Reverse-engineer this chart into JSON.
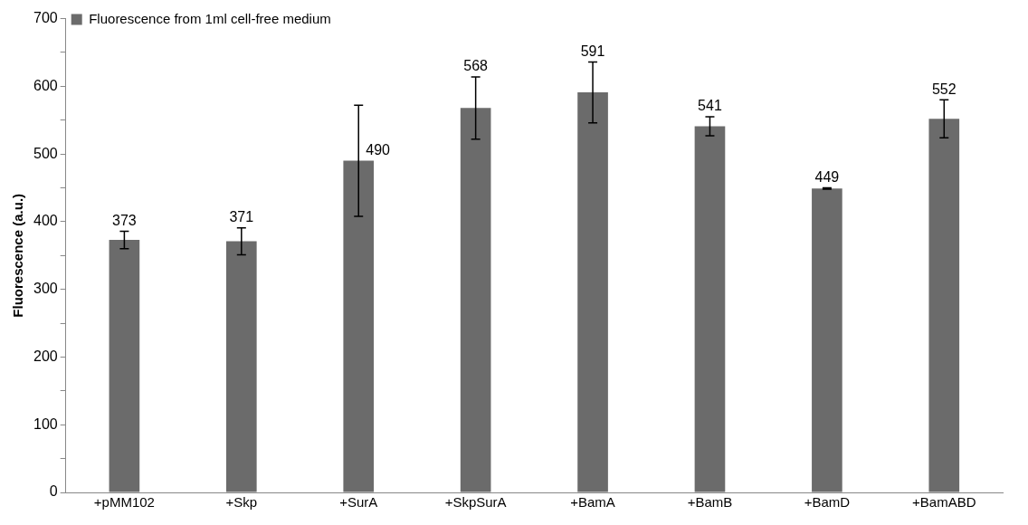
{
  "chart_data": {
    "type": "bar",
    "ylabel": "Fluorescence (a.u.)",
    "categories": [
      "+pMM102",
      "+Skp",
      "+SurA",
      "+SkpSurA",
      "+BamA",
      "+BamB",
      "+BamD",
      "+BamABD"
    ],
    "series": [
      {
        "name": "Fluorescence from 1ml cell-free medium",
        "color": "#6b6b6b",
        "values": [
          373,
          371,
          490,
          568,
          591,
          541,
          449,
          552
        ],
        "errors": [
          13,
          20,
          82,
          46,
          45,
          14,
          1,
          28
        ]
      }
    ],
    "ylim": [
      0,
      700
    ],
    "yticks": [
      0,
      {
        "value": 50,
        "label": null
      },
      100,
      {
        "value": 150,
        "label": null
      },
      200,
      {
        "value": 250,
        "label": null
      },
      300,
      {
        "value": 350,
        "label": null
      },
      400,
      {
        "value": 450,
        "label": null
      },
      500,
      {
        "value": 550,
        "label": null
      },
      600,
      {
        "value": 650,
        "label": null
      },
      700
    ],
    "data_labels": true,
    "grid": false,
    "legend": "top left"
  }
}
